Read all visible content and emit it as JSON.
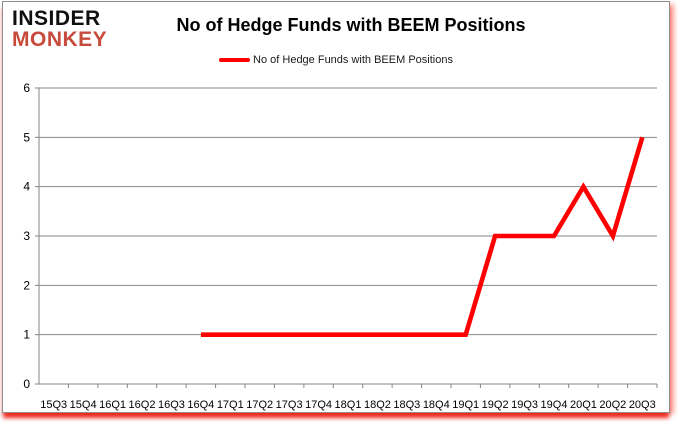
{
  "logo": {
    "line1": "INSIDER",
    "line2": "MONKEY"
  },
  "header": {
    "title": "No of Hedge Funds with BEEM Positions"
  },
  "legend": {
    "label": "No of Hedge Funds with BEEM Positions"
  },
  "colors": {
    "line": "#fe0000",
    "logo_black": "#101010",
    "logo_red": "#c84a3b",
    "grid": "#868686",
    "axis_text": "#000000",
    "frame_border": "#8f8f8f",
    "shadow_red": "#ed1c12"
  },
  "chart_data": {
    "type": "line",
    "title": "No of Hedge Funds with BEEM Positions",
    "categories": [
      "15Q3",
      "15Q4",
      "16Q1",
      "16Q2",
      "16Q3",
      "16Q4",
      "17Q1",
      "17Q2",
      "17Q3",
      "17Q4",
      "18Q1",
      "18Q2",
      "18Q3",
      "18Q4",
      "19Q1",
      "19Q2",
      "19Q3",
      "19Q4",
      "20Q1",
      "20Q2",
      "20Q3"
    ],
    "series": [
      {
        "name": "No of Hedge Funds with BEEM Positions",
        "color": "#fe0000",
        "values": [
          null,
          null,
          null,
          null,
          null,
          1,
          1,
          1,
          1,
          1,
          1,
          1,
          1,
          1,
          1,
          3,
          3,
          3,
          4,
          3,
          5
        ]
      }
    ],
    "xlabel": "",
    "ylabel": "",
    "ylim": [
      0,
      6
    ],
    "yticks": [
      0,
      1,
      2,
      3,
      4,
      5,
      6
    ],
    "grid": "horizontal",
    "legend_position": "top-center"
  }
}
